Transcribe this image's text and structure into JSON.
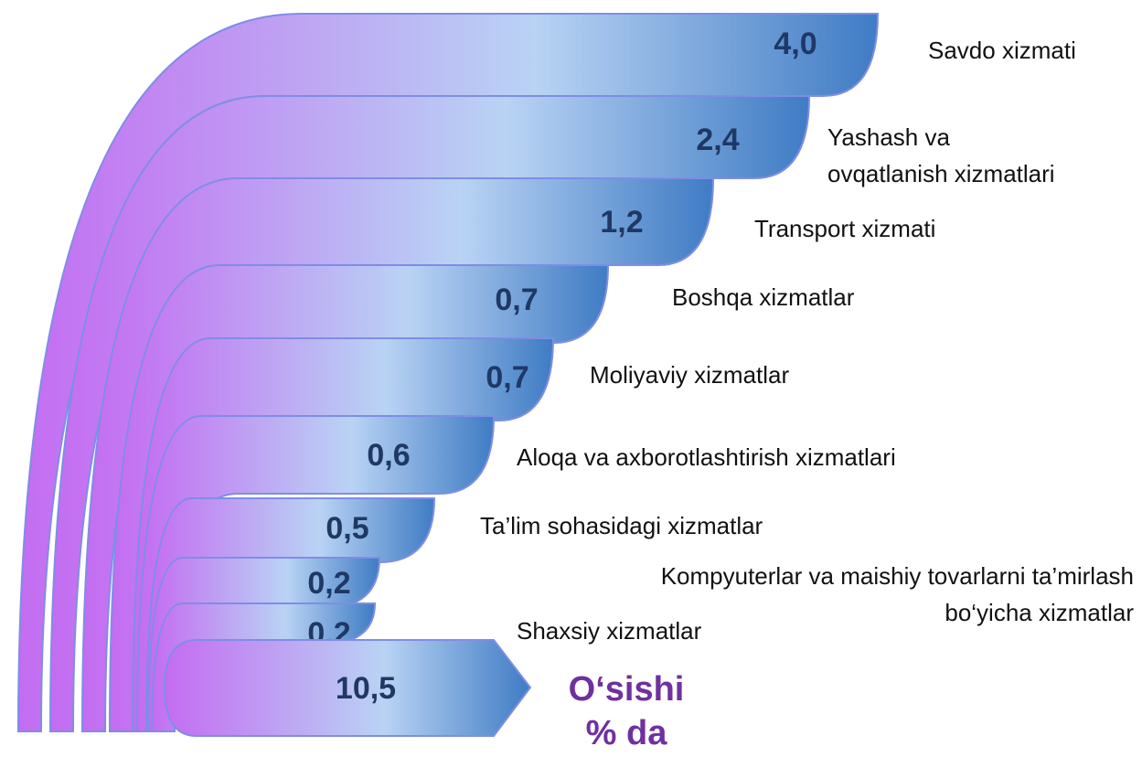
{
  "chart_data": {
    "type": "infographic",
    "categories": [
      "Savdo xizmati",
      "Yashash va\novqatlanish xizmatlari",
      "Transport xizmati",
      "Boshqa xizmatlar",
      "Moliyaviy xizmatlar",
      "Aloqa va axborotlashtirish xizmatlari",
      "Ta’lim sohasidagi xizmatlar",
      "Kompyuterlar va maishiy tovarlarni ta’mirlash\nbo‘yicha  xizmatlar",
      "Shaxsiy  xizmatlar"
    ],
    "values": [
      4.0,
      2.4,
      1.2,
      0.7,
      0.7,
      0.6,
      0.5,
      0.2,
      0.2
    ],
    "value_labels": [
      "4,0",
      "2,4",
      "1,2",
      "0,7",
      "0,7",
      "0,6",
      "0,5",
      "0,2",
      "0,2"
    ],
    "total": 10.5,
    "total_label": "10,5",
    "total_caption": "O‘sishi\n% da",
    "colors": [
      "#c46cf2",
      "#b9d3f4",
      "#3f7cc4"
    ],
    "value_color": "#1f3864",
    "caption_color": "#7030a0"
  }
}
